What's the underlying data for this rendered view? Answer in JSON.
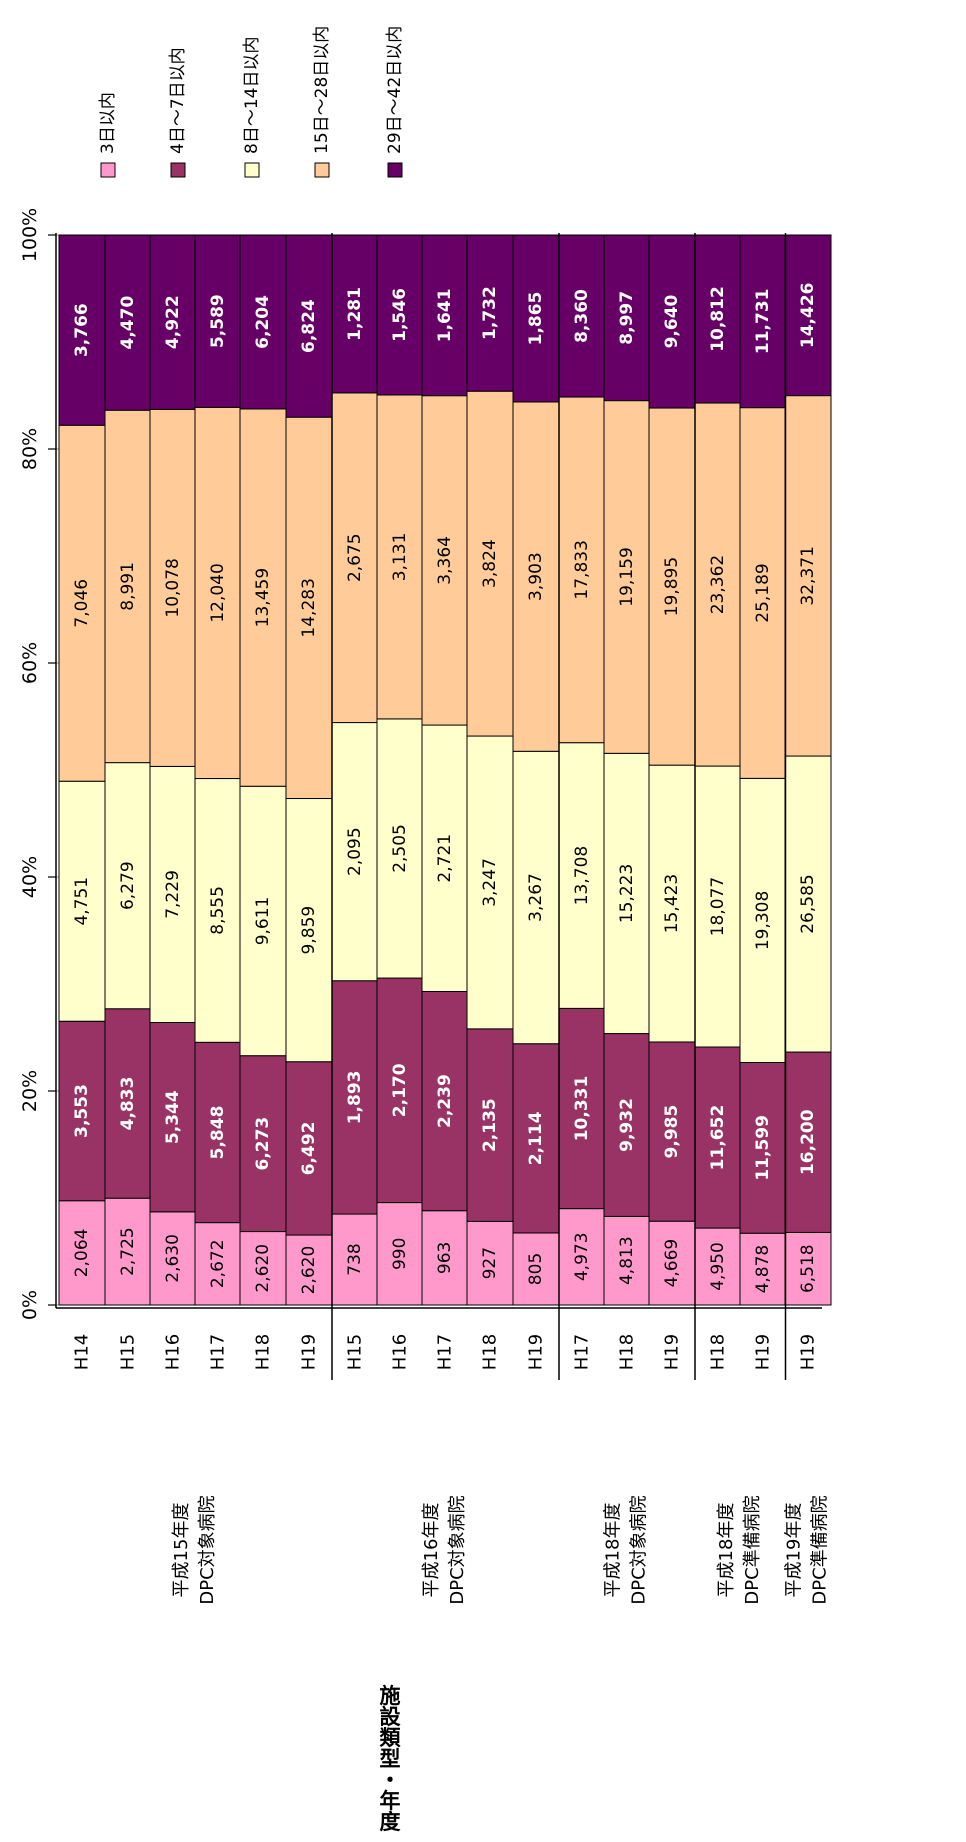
{
  "chart_data": {
    "type": "bar",
    "stacked": "percent",
    "orientation": "horizontal-bars-rotated-page",
    "ylim": [
      0,
      100
    ],
    "yticks": [
      "0%",
      "20%",
      "40%",
      "60%",
      "80%",
      "100%"
    ],
    "axis_title": "施設類型・年度",
    "grid": true,
    "legend_position": "top",
    "series": [
      {
        "name": "3日以内",
        "color": "#ff99cc",
        "label_color": "#000000",
        "values": [
          2064,
          2725,
          2630,
          2672,
          2620,
          2620,
          738,
          990,
          963,
          927,
          805,
          4973,
          4813,
          4669,
          4950,
          4878,
          6518
        ]
      },
      {
        "name": "4日～7日以内",
        "color": "#993366",
        "label_color": "#ffffff",
        "values": [
          3553,
          4833,
          5344,
          5848,
          6273,
          6492,
          1893,
          2170,
          2239,
          2135,
          2114,
          10331,
          9932,
          9985,
          11652,
          11599,
          16200
        ]
      },
      {
        "name": "8日～14日以内",
        "color": "#ffffcc",
        "label_color": "#000000",
        "values": [
          4751,
          6279,
          7229,
          8555,
          9611,
          9859,
          2095,
          2505,
          2721,
          3247,
          3267,
          13708,
          15223,
          15423,
          18077,
          19308,
          26585
        ]
      },
      {
        "name": "15日～28日以内",
        "color": "#ffcc99",
        "label_color": "#000000",
        "values": [
          7046,
          8991,
          10078,
          12040,
          13459,
          14283,
          2675,
          3131,
          3364,
          3824,
          3903,
          17833,
          19159,
          19895,
          23362,
          25189,
          32371
        ]
      },
      {
        "name": "29日～42日以内",
        "color": "#660066",
        "label_color": "#ffffff",
        "values": [
          3766,
          4470,
          4922,
          5589,
          6204,
          6824,
          1281,
          1546,
          1641,
          1732,
          1865,
          8360,
          8997,
          9640,
          10812,
          11731,
          14426
        ]
      }
    ],
    "data_labels": [
      [
        "2,064",
        "2,725",
        "2,630",
        "2,672",
        "2,620",
        "2,620",
        "738",
        "990",
        "963",
        "927",
        "805",
        "4,973",
        "4,813",
        "4,669",
        "4,950",
        "4,878",
        "6,518"
      ],
      [
        "3,553",
        "4,833",
        "5,344",
        "5,848",
        "6,273",
        "6,492",
        "1,893",
        "2,170",
        "2,239",
        "2,135",
        "2,114",
        "10,331",
        "9,932",
        "9,985",
        "11,652",
        "11,599",
        "16,200"
      ],
      [
        "4,751",
        "6,279",
        "7,229",
        "8,555",
        "9,611",
        "9,859",
        "2,095",
        "2,505",
        "2,721",
        "3,247",
        "3,267",
        "13,708",
        "15,223",
        "15,423",
        "18,077",
        "19,308",
        "26,585"
      ],
      [
        "7,046",
        "8,991",
        "10,078",
        "12,040",
        "13,459",
        "14,283",
        "2,675",
        "3,131",
        "3,364",
        "3,824",
        "3,903",
        "17,833",
        "19,159",
        "19,895",
        "23,362",
        "25,189",
        "32,371"
      ],
      [
        "3,766",
        "4,470",
        "4,922",
        "5,589",
        "6,204",
        "6,824",
        "1,281",
        "1,546",
        "1,641",
        "1,732",
        "1,865",
        "8,360",
        "8,997",
        "9,640",
        "10,812",
        "11,731",
        "14,426"
      ]
    ],
    "categories": [
      "H14",
      "H15",
      "H16",
      "H17",
      "H18",
      "H19",
      "H15",
      "H16",
      "H17",
      "H18",
      "H19",
      "H17",
      "H18",
      "H19",
      "H18",
      "H19",
      "H19"
    ],
    "groups": [
      {
        "line1": "平成15年度",
        "line2": "DPC対象病院",
        "start": 0,
        "end": 5
      },
      {
        "line1": "平成16年度",
        "line2": "DPC対象病院",
        "start": 6,
        "end": 10
      },
      {
        "line1": "平成18年度",
        "line2": "DPC対象病院",
        "start": 11,
        "end": 13
      },
      {
        "line1": "平成18年度",
        "line2": "DPC準備病院",
        "start": 14,
        "end": 15
      },
      {
        "line1": "平成19年度",
        "line2": "DPC準備病院",
        "start": 16,
        "end": 16
      }
    ]
  }
}
